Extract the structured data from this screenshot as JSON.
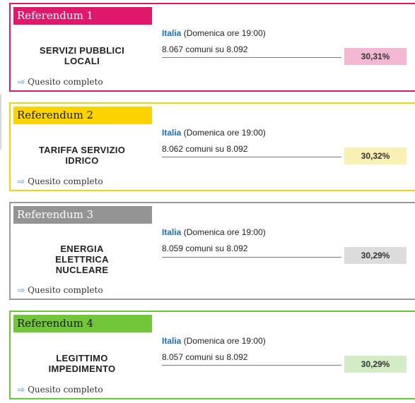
{
  "cards": [
    {
      "tag": "Referendum 1",
      "region": "Italia",
      "time": "(Domenica ore 19:00)",
      "title_lines": [
        "SERVIZI PUBBLICI",
        "LOCALI"
      ],
      "comuni": "8.067 comuni su 8.092",
      "percent": "30,31%",
      "link": "Quesito completo",
      "colors": {
        "border": "#e0186c",
        "tag_bg": "#e0186c",
        "tag_text": "#ffffff",
        "pct_bg": "#f4b7d2"
      }
    },
    {
      "tag": "Referendum 2",
      "region": "Italia",
      "time": "(Domenica ore 19:00)",
      "title_lines": [
        "TARIFFA SERVIZIO",
        "IDRICO"
      ],
      "comuni": "8.062 comuni su 8.092",
      "percent": "30,32%",
      "link": "Quesito completo",
      "colors": {
        "border": "#f6d40c",
        "tag_bg": "#fad300",
        "tag_text": "#222222",
        "pct_bg": "#fbf0b4"
      }
    },
    {
      "tag": "Referendum 3",
      "region": "Italia",
      "time": "(Domenica ore 19:00)",
      "title_lines": [
        "ENERGIA",
        "ELETTRICA",
        "NUCLEARE"
      ],
      "comuni": "8.059 comuni su 8.092",
      "percent": "30,29%",
      "link": "Quesito completo",
      "colors": {
        "border": "#9a9a9a",
        "tag_bg": "#949494",
        "tag_text": "#ffffff",
        "pct_bg": "#dcdcdc"
      }
    },
    {
      "tag": "Referendum 4",
      "region": "Italia",
      "time": "(Domenica ore 19:00)",
      "title_lines": [
        "LEGITTIMO",
        "IMPEDIMENTO"
      ],
      "comuni": "8.057 comuni su 8.092",
      "percent": "30,29%",
      "link": "Quesito completo",
      "colors": {
        "border": "#6cc43a",
        "tag_bg": "#72c63a",
        "tag_text": "#1a1a1a",
        "pct_bg": "#d4ecc6"
      }
    }
  ],
  "icons": {
    "link_arrow": "right-arrow-icon"
  }
}
